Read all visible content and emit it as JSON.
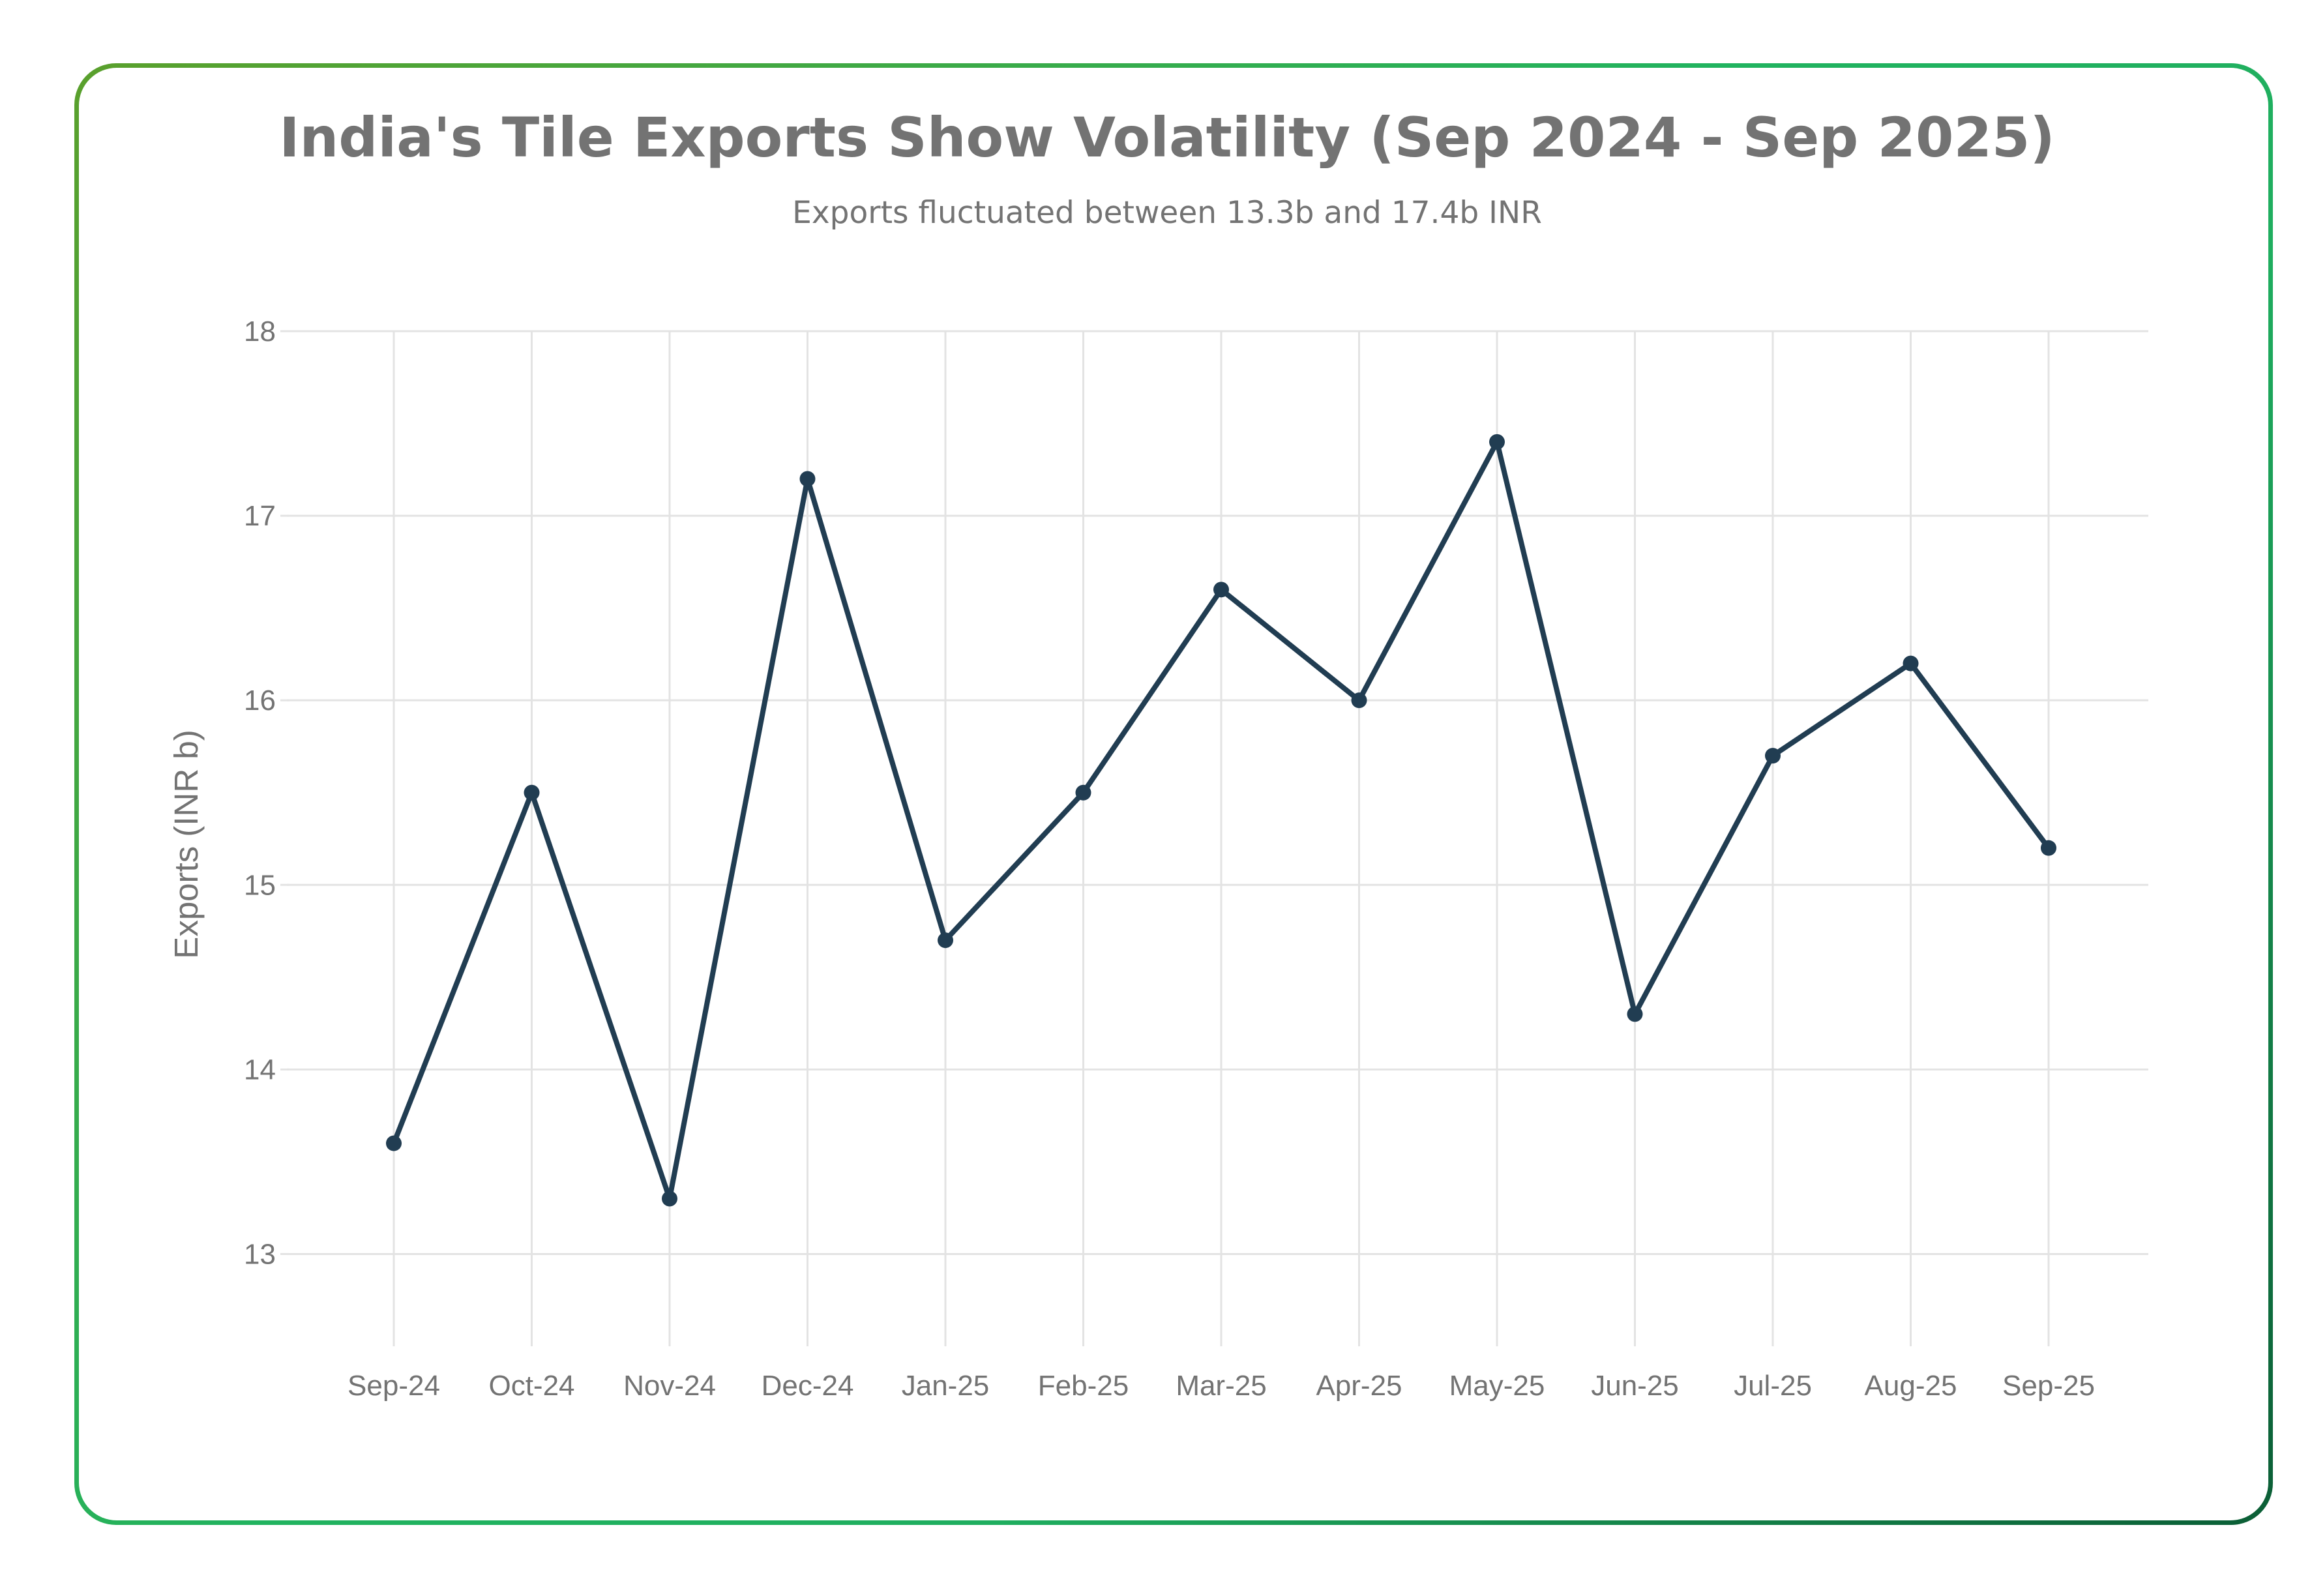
{
  "chart_data": {
    "type": "line",
    "title": "India's Tile Exports Show Volatility (Sep 2024 - Sep 2025)",
    "subtitle": "Exports fluctuated between 13.3b and 17.4b INR",
    "xlabel": "",
    "ylabel": "Exports (INR b)",
    "ylim": [
      12.5,
      18
    ],
    "yticks": [
      13,
      14,
      15,
      16,
      17,
      18
    ],
    "grid": true,
    "categories": [
      "Sep-24",
      "Oct-24",
      "Nov-24",
      "Dec-24",
      "Jan-25",
      "Feb-25",
      "Mar-25",
      "Apr-25",
      "May-25",
      "Jun-25",
      "Jul-25",
      "Aug-25",
      "Sep-25"
    ],
    "series": [
      {
        "name": "Exports",
        "values": [
          13.6,
          15.5,
          13.3,
          17.2,
          14.7,
          15.5,
          16.6,
          16.0,
          17.4,
          14.3,
          15.7,
          16.2,
          15.2
        ]
      }
    ]
  },
  "colors": {
    "line": "#213d52",
    "text": "#737373",
    "grid": "#e3e3e3"
  }
}
